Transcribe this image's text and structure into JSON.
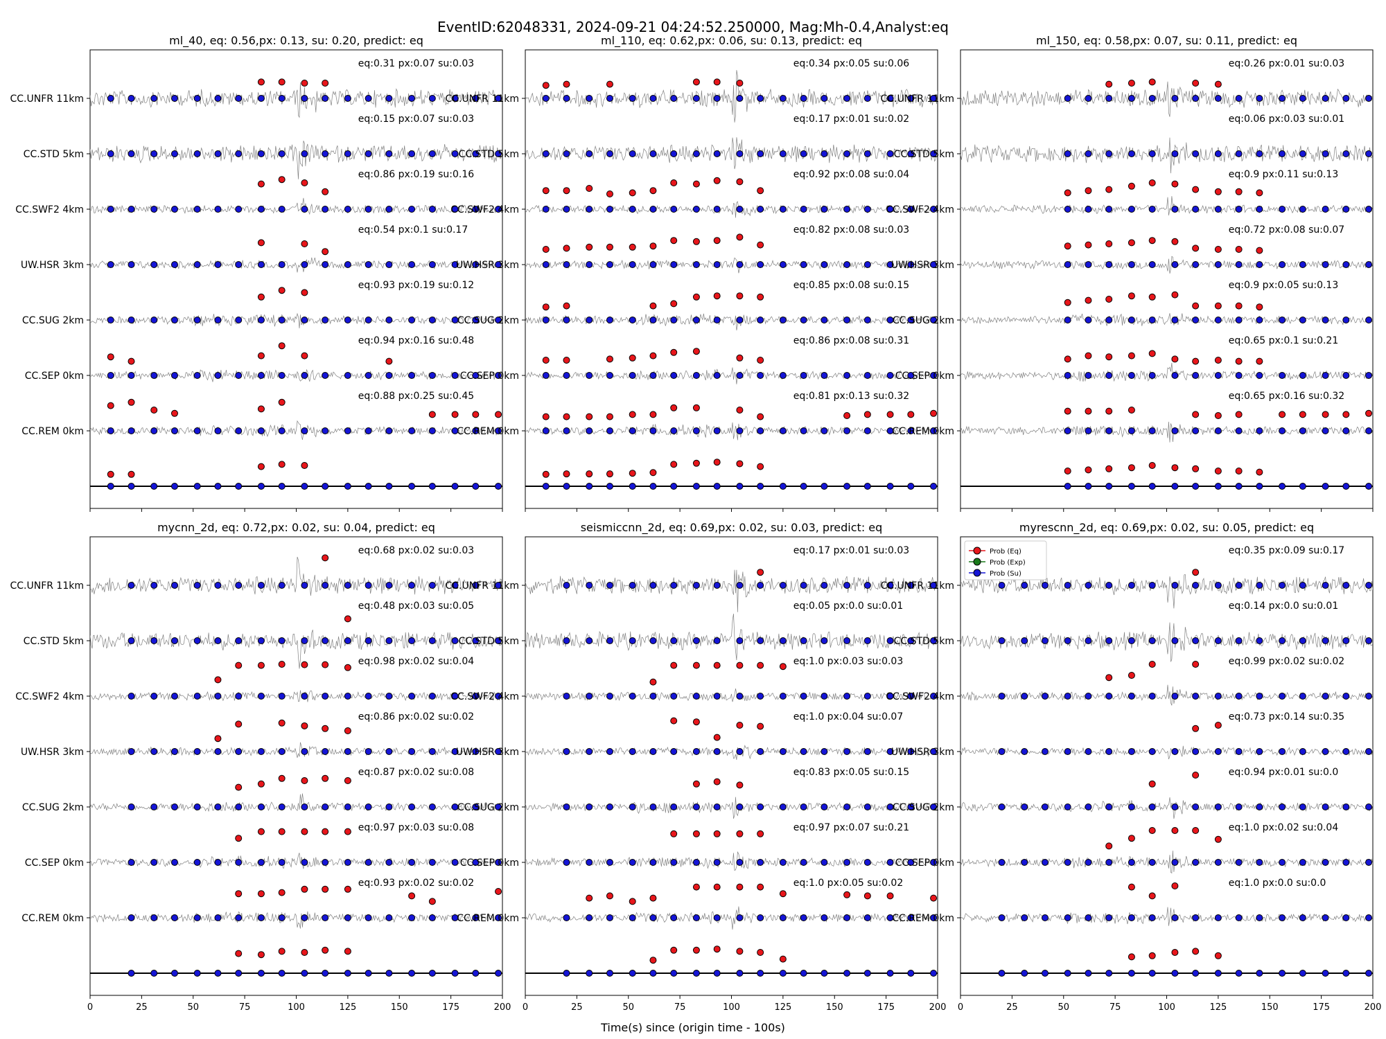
{
  "figure": {
    "suptitle": "EventID:62048331, 2024-09-21 04:24:52.250000, Mag:Mh-0.4,Analyst:eq",
    "xlabel": "Time(s) since (origin time - 100s)",
    "legend": {
      "placement": "top-left of bottom-right panel",
      "entries": [
        "Prob (Eq)",
        "Prob (Exp)",
        "Prob (Su)"
      ]
    },
    "colors": {
      "eq": "#e8161b",
      "exp": "#1a7a1a",
      "su": "#1515d6",
      "trace": "#808080",
      "baseline": "#000000"
    }
  },
  "chart_data": [
    {
      "type": "scatter",
      "title": "ml_40, eq: 0.56,px: 0.13, su: 0.20, predict: eq",
      "xlim": [
        0,
        200
      ],
      "xticks": [
        0,
        25,
        50,
        75,
        100,
        125,
        150,
        175,
        200
      ],
      "show_xticklabels": false,
      "stations": [
        "CC.UNFR 11km",
        "CC.STD 5km",
        "CC.SWF2 4km",
        "UW.HSR 3km",
        "CC.SUG 2km",
        "CC.SEP 0km",
        "CC.REM 0km"
      ],
      "station_scores": [
        "eq:0.31  px:0.07  su:0.03",
        "eq:0.15  px:0.07  su:0.03",
        "eq:0.86  px:0.19  su:0.16",
        "eq:0.54  px:0.1    su:0.17",
        "eq:0.93  px:0.19  su:0.12",
        "eq:0.94  px:0.16  su:0.48",
        "eq:0.88  px:0.25  su:0.45"
      ],
      "window_times": [
        10,
        20,
        31,
        41,
        52,
        62,
        72,
        83,
        93,
        104,
        114,
        125,
        135,
        145,
        156,
        166,
        177,
        187,
        198
      ],
      "eq_prob": [
        [
          0,
          0,
          0,
          0,
          0,
          0,
          0,
          0.3,
          0.3,
          0.25,
          0.25,
          0,
          0,
          0,
          0,
          0,
          0,
          0,
          0
        ],
        [
          0,
          0,
          0,
          0,
          0,
          0,
          0,
          0,
          0,
          0,
          0,
          0,
          0,
          0,
          0,
          0,
          0,
          0,
          0
        ],
        [
          0,
          0,
          0,
          0,
          0,
          0,
          0,
          0.7,
          0.9,
          0.75,
          0.35,
          0,
          0,
          0,
          0,
          0,
          0,
          0,
          0
        ],
        [
          0,
          0,
          0,
          0,
          0,
          0,
          0,
          0.55,
          0.05,
          0.5,
          0.15,
          0,
          0,
          0,
          0,
          0,
          0,
          0,
          0
        ],
        [
          0,
          0,
          0,
          0,
          0,
          0,
          0,
          0.6,
          0.9,
          0.8,
          0,
          0,
          0,
          0,
          0,
          0,
          0,
          0,
          0
        ],
        [
          0.4,
          0.2,
          0,
          0,
          0,
          0,
          0,
          0.45,
          0.9,
          0.45,
          0,
          0,
          0,
          0.2,
          0,
          0,
          0,
          0,
          0
        ],
        [
          0.7,
          0.85,
          0.5,
          0.35,
          0,
          0,
          0,
          0.55,
          0.85,
          0,
          0,
          0,
          0,
          0,
          0,
          0.3,
          0.3,
          0.3,
          0.3
        ],
        [
          0.1,
          0.1,
          0,
          0,
          0,
          0,
          0,
          0.45,
          0.55,
          0.5,
          0,
          0,
          0,
          0,
          0,
          0,
          0,
          0,
          0
        ]
      ]
    },
    {
      "type": "scatter",
      "title": "ml_110, eq: 0.62,px: 0.06, su: 0.13, predict: eq",
      "xlim": [
        0,
        200
      ],
      "xticks": [
        0,
        25,
        50,
        75,
        100,
        125,
        150,
        175,
        200
      ],
      "show_xticklabels": false,
      "stations": [
        "CC.UNFR 11km",
        "CC.STD 5km",
        "CC.SWF2 4km",
        "UW.HSR 3km",
        "CC.SUG 2km",
        "CC.SEP 0km",
        "CC.REM 0km"
      ],
      "station_scores": [
        "eq:0.34  px:0.05  su:0.06",
        "eq:0.17  px:0.01  su:0.02",
        "eq:0.92  px:0.08  su:0.04",
        "eq:0.82  px:0.08  su:0.03",
        "eq:0.85  px:0.08  su:0.15",
        "eq:0.86  px:0.08  su:0.31",
        "eq:0.81  px:0.13  su:0.32"
      ],
      "window_times": [
        10,
        20,
        31,
        41,
        52,
        62,
        72,
        83,
        93,
        104,
        114,
        125,
        135,
        145,
        156,
        166,
        177,
        187,
        198
      ],
      "eq_prob": [
        [
          0.15,
          0.2,
          0,
          0.2,
          0,
          0,
          0,
          0.3,
          0.3,
          0.25,
          0,
          0,
          0,
          0,
          0,
          0,
          0,
          0,
          0
        ],
        [
          0,
          0,
          0,
          0,
          0,
          0,
          0,
          0,
          0,
          0,
          0,
          0,
          0,
          0,
          0,
          0,
          0,
          0,
          0
        ],
        [
          0.4,
          0.4,
          0.5,
          0.25,
          0.3,
          0.4,
          0.75,
          0.7,
          0.85,
          0.8,
          0.4,
          0,
          0,
          0,
          0,
          0,
          0,
          0,
          0
        ],
        [
          0.25,
          0.3,
          0.35,
          0.35,
          0.35,
          0.4,
          0.65,
          0.6,
          0.65,
          0.8,
          0.45,
          0,
          0,
          0,
          0,
          0,
          0,
          0,
          0
        ],
        [
          0.15,
          0.2,
          0,
          0,
          0,
          0.2,
          0.3,
          0.6,
          0.65,
          0.65,
          0.6,
          0,
          0,
          0,
          0,
          0,
          0,
          0,
          0
        ],
        [
          0.25,
          0.25,
          0,
          0.3,
          0.35,
          0.45,
          0.6,
          0.65,
          0.0,
          0.35,
          0.25,
          0,
          0,
          0,
          0,
          0,
          0,
          0,
          0
        ],
        [
          0.2,
          0.2,
          0.2,
          0.2,
          0.3,
          0.3,
          0.6,
          0.6,
          0.0,
          0.5,
          0.2,
          0,
          0,
          0,
          0.25,
          0.3,
          0.3,
          0.3,
          0.35
        ],
        [
          0.1,
          0.12,
          0.12,
          0.12,
          0.15,
          0.18,
          0.55,
          0.6,
          0.65,
          0.58,
          0.45,
          0,
          0,
          0,
          0,
          0,
          0,
          0,
          0
        ]
      ]
    },
    {
      "type": "scatter",
      "title": "ml_150, eq: 0.58,px: 0.07, su: 0.11, predict: eq",
      "xlim": [
        0,
        200
      ],
      "xticks": [
        0,
        25,
        50,
        75,
        100,
        125,
        150,
        175,
        200
      ],
      "show_xticklabels": false,
      "stations": [
        "CC.UNFR 11km",
        "CC.STD 5km",
        "CC.SWF2 4km",
        "UW.HSR 3km",
        "CC.SUG 2km",
        "CC.SEP 0km",
        "CC.REM 0km"
      ],
      "station_scores": [
        "eq:0.26  px:0.01  su:0.03",
        "eq:0.06  px:0.03  su:0.01",
        "eq:0.9    px:0.11  su:0.13",
        "eq:0.72  px:0.08  su:0.07",
        "eq:0.9    px:0.05  su:0.13",
        "eq:0.65  px:0.1    su:0.21",
        "eq:0.65  px:0.16  su:0.32"
      ],
      "window_times": [
        52,
        62,
        72,
        83,
        93,
        104,
        114,
        125,
        135,
        145,
        156,
        166,
        177,
        187,
        198
      ],
      "eq_prob": [
        [
          0,
          0,
          0.2,
          0.25,
          0.3,
          0,
          0.25,
          0.2,
          0,
          0,
          0,
          0,
          0,
          0,
          0
        ],
        [
          0,
          0,
          0,
          0,
          0,
          0,
          0,
          0,
          0,
          0,
          0,
          0,
          0,
          0,
          0
        ],
        [
          0.3,
          0.4,
          0.45,
          0.6,
          0.75,
          0.7,
          0.45,
          0.35,
          0.35,
          0.3,
          0,
          0,
          0,
          0,
          0
        ],
        [
          0.4,
          0.45,
          0.5,
          0.55,
          0.65,
          0.6,
          0.3,
          0.25,
          0.25,
          0.2,
          0,
          0,
          0,
          0,
          0
        ],
        [
          0.35,
          0.45,
          0.5,
          0.65,
          0.6,
          0.7,
          0.2,
          0.2,
          0.2,
          0.15,
          0,
          0,
          0,
          0,
          0
        ],
        [
          0.3,
          0.45,
          0.4,
          0.45,
          0.55,
          0.3,
          0.2,
          0.25,
          0.2,
          0.2,
          0,
          0,
          0,
          0,
          0
        ],
        [
          0.45,
          0.45,
          0.45,
          0.5,
          0.0,
          0.0,
          0.3,
          0.25,
          0.3,
          0.0,
          0.3,
          0.3,
          0.3,
          0.3,
          0.35
        ],
        [
          0.25,
          0.3,
          0.35,
          0.4,
          0.5,
          0.4,
          0.35,
          0.25,
          0.25,
          0.2,
          0,
          0,
          0,
          0,
          0
        ]
      ]
    },
    {
      "type": "scatter",
      "title": "mycnn_2d, eq: 0.72,px: 0.02, su: 0.04, predict: eq",
      "xlim": [
        0,
        200
      ],
      "xticks": [
        0,
        25,
        50,
        75,
        100,
        125,
        150,
        175,
        200
      ],
      "show_xticklabels": true,
      "stations": [
        "CC.UNFR 11km",
        "CC.STD 5km",
        "CC.SWF2 4km",
        "UW.HSR 3km",
        "CC.SUG 2km",
        "CC.SEP 0km",
        "CC.REM 0km"
      ],
      "station_scores": [
        "eq:0.68  px:0.02  su:0.03",
        "eq:0.48  px:0.03  su:0.05",
        "eq:0.98  px:0.02  su:0.04",
        "eq:0.86  px:0.02  su:0.02",
        "eq:0.87  px:0.02  su:0.08",
        "eq:0.97  px:0.03  su:0.08",
        "eq:0.93  px:0.02  su:0.02"
      ],
      "window_times": [
        20,
        31,
        41,
        52,
        62,
        72,
        83,
        93,
        104,
        114,
        125,
        135,
        145,
        156,
        166,
        177,
        187,
        198
      ],
      "eq_prob": [
        [
          0,
          0,
          0,
          0,
          0,
          0,
          0,
          0.05,
          0,
          0.8,
          0,
          0,
          0,
          0,
          0,
          0,
          0,
          0
        ],
        [
          0,
          0,
          0,
          0,
          0,
          0,
          0,
          0,
          0,
          0,
          0.55,
          0,
          0,
          0,
          0,
          0,
          0,
          0
        ],
        [
          0,
          0,
          0,
          0,
          0.3,
          0.95,
          0.95,
          1.0,
          0.98,
          0.98,
          0.85,
          0,
          0,
          0,
          0,
          0,
          0,
          0
        ],
        [
          0,
          0,
          0,
          0,
          0.15,
          0.8,
          0.0,
          0.85,
          0.72,
          0.6,
          0.5,
          0,
          0,
          0,
          0,
          0,
          0,
          0
        ],
        [
          0,
          0,
          0,
          0,
          0,
          0.45,
          0.6,
          0.85,
          0.75,
          0.85,
          0.75,
          0,
          0,
          0,
          0,
          0,
          0,
          0
        ],
        [
          0,
          0,
          0,
          0,
          0.05,
          0.65,
          0.95,
          0.95,
          0.95,
          0.95,
          0.95,
          0,
          0,
          0,
          0,
          0,
          0,
          0
        ],
        [
          0,
          0,
          0,
          0,
          0.0,
          0.65,
          0.65,
          0.7,
          0.85,
          0.85,
          0.85,
          0,
          0,
          0.55,
          0.3,
          0.0,
          0,
          0.75
        ],
        [
          0,
          0,
          0,
          0,
          0,
          0.45,
          0.4,
          0.55,
          0.5,
          0.6,
          0.55,
          0,
          0,
          0,
          0,
          0,
          0,
          0
        ]
      ]
    },
    {
      "type": "scatter",
      "title": "seismiccnn_2d, eq: 0.69,px: 0.02, su: 0.03, predict: eq",
      "xlim": [
        0,
        200
      ],
      "xticks": [
        0,
        25,
        50,
        75,
        100,
        125,
        150,
        175,
        200
      ],
      "show_xticklabels": true,
      "stations": [
        "CC.UNFR 11km",
        "CC.STD 5km",
        "CC.SWF2 4km",
        "UW.HSR 3km",
        "CC.SUG 2km",
        "CC.SEP 0km",
        "CC.REM 0km"
      ],
      "station_scores": [
        "eq:0.17  px:0.01  su:0.03",
        "eq:0.05  px:0.0    su:0.01",
        "eq:1.0    px:0.03  su:0.03",
        "eq:1.0    px:0.04  su:0.07",
        "eq:0.83  px:0.05  su:0.15",
        "eq:0.97  px:0.07  su:0.21",
        "eq:1.0    px:0.05  su:0.02"
      ],
      "window_times": [
        20,
        31,
        41,
        52,
        62,
        72,
        83,
        93,
        104,
        114,
        125,
        135,
        145,
        156,
        166,
        177,
        187,
        198
      ],
      "eq_prob": [
        [
          0,
          0,
          0,
          0,
          0,
          0,
          0,
          0.05,
          0.05,
          0.15,
          0,
          0,
          0,
          0,
          0,
          0,
          0,
          0
        ],
        [
          0,
          0,
          0,
          0,
          0,
          0,
          0,
          0,
          0,
          0,
          0,
          0,
          0,
          0,
          0,
          0,
          0,
          0
        ],
        [
          0,
          0,
          0,
          0,
          0.2,
          0.95,
          0.95,
          0.95,
          0.95,
          0.95,
          0.9,
          0,
          0,
          0,
          0,
          0,
          0,
          0
        ],
        [
          0,
          0,
          0,
          0,
          0,
          0.95,
          0.9,
          0.2,
          0.75,
          0.7,
          0,
          0,
          0,
          0,
          0,
          0,
          0,
          0
        ],
        [
          0,
          0,
          0,
          0,
          0,
          0.0,
          0.6,
          0.7,
          0.55,
          0.05,
          0,
          0,
          0,
          0,
          0,
          0,
          0,
          0
        ],
        [
          0,
          0,
          0,
          0,
          0.0,
          0.85,
          0.85,
          0.85,
          0.85,
          0.85,
          0,
          0,
          0,
          0,
          0,
          0,
          0,
          0
        ],
        [
          0,
          0.45,
          0.55,
          0.3,
          0.45,
          0.0,
          0.95,
          0.95,
          0.95,
          0.95,
          0.65,
          0.0,
          0.0,
          0.6,
          0.55,
          0.55,
          0.0,
          0.45
        ],
        [
          0,
          0,
          0,
          0,
          0.15,
          0.6,
          0.6,
          0.65,
          0.55,
          0.5,
          0.2,
          0,
          0,
          0,
          0,
          0,
          0,
          0
        ]
      ]
    },
    {
      "type": "scatter",
      "title": "myrescnn_2d, eq: 0.69,px: 0.02, su: 0.05, predict: eq",
      "xlim": [
        0,
        200
      ],
      "xticks": [
        0,
        25,
        50,
        75,
        100,
        125,
        150,
        175,
        200
      ],
      "show_xticklabels": true,
      "stations": [
        "CC.UNFR 11km",
        "CC.STD 5km",
        "CC.SWF2 4km",
        "UW.HSR 3km",
        "CC.SUG 2km",
        "CC.SEP 0km",
        "CC.REM 0km"
      ],
      "station_scores": [
        "eq:0.35  px:0.09  su:0.17",
        "eq:0.14  px:0.0    su:0.01",
        "eq:0.99  px:0.02  su:0.02",
        "eq:0.73  px:0.14  su:0.35",
        "eq:0.94  px:0.01  su:0.0",
        "eq:1.0    px:0.02  su:0.04",
        "eq:1.0    px:0.0    su:0.0"
      ],
      "window_times": [
        20,
        31,
        41,
        52,
        62,
        72,
        83,
        93,
        104,
        114,
        125,
        135,
        145,
        156,
        166,
        177,
        187,
        198
      ],
      "eq_prob": [
        [
          0,
          0,
          0,
          0,
          0,
          0,
          0,
          0,
          0,
          0.15,
          0,
          0,
          0,
          0,
          0,
          0,
          0,
          0
        ],
        [
          0,
          0,
          0,
          0,
          0,
          0,
          0,
          0,
          0,
          0,
          0,
          0,
          0,
          0,
          0,
          0,
          0,
          0
        ],
        [
          0,
          0,
          0,
          0,
          0,
          0.4,
          0.5,
          1.0,
          0.0,
          1.0,
          0.0,
          0,
          0,
          0,
          0,
          0,
          0,
          0
        ],
        [
          0,
          0,
          0,
          0,
          0,
          0,
          0,
          0,
          0,
          0.6,
          0.75,
          0,
          0,
          0,
          0,
          0,
          0,
          0
        ],
        [
          0,
          0,
          0,
          0,
          0,
          0,
          0,
          0.6,
          0.0,
          1.0,
          0,
          0,
          0,
          0,
          0,
          0,
          0,
          0
        ],
        [
          0,
          0,
          0,
          0,
          0,
          0.3,
          0.65,
          1.0,
          1.0,
          1.0,
          0.6,
          0,
          0,
          0,
          0,
          0,
          0,
          0
        ],
        [
          0,
          0,
          0,
          0,
          0,
          0,
          0.95,
          0.55,
          1.0,
          0,
          0,
          0,
          0,
          0,
          0,
          0,
          0,
          0
        ],
        [
          0,
          0,
          0,
          0,
          0,
          0,
          0.3,
          0.35,
          0.5,
          0.55,
          0.35,
          0,
          0,
          0,
          0,
          0,
          0,
          0
        ]
      ]
    }
  ]
}
